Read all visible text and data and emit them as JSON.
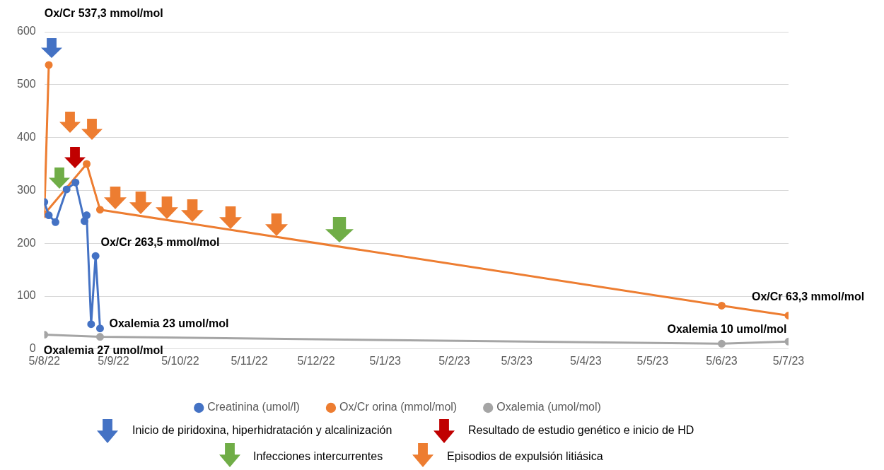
{
  "chart_data": {
    "type": "line",
    "x": [
      "2022-08-05",
      "2022-08-07",
      "2022-08-10",
      "2022-08-15",
      "2022-08-19",
      "2022-08-23",
      "2022-08-24",
      "2022-08-26",
      "2022-08-28",
      "2022-08-30"
    ],
    "series": [
      {
        "name": "Creatinina (umol/l)",
        "color": "#4472c4",
        "values": [
          278,
          253,
          240,
          302,
          315,
          242,
          253,
          47,
          176,
          39
        ]
      },
      {
        "name": "Ox/Cr orina (mmol/mol)",
        "color": "#ed7d31",
        "x": [
          "2022-08-07",
          "2022-08-05",
          "2022-08-24",
          "2022-08-30",
          "2023-06-05",
          "2023-07-05"
        ],
        "values": [
          537.3,
          255,
          350,
          263.5,
          82,
          63.3
        ]
      },
      {
        "name": "Oxalemia (umol/mol)",
        "color": "#a5a5a5",
        "x": [
          "2022-08-05",
          "2022-08-30",
          "2023-06-05",
          "2023-07-05"
        ],
        "values": [
          27,
          23,
          10,
          14
        ]
      }
    ],
    "xlim": [
      "2022-08-05",
      "2023-07-05"
    ],
    "xticks": [
      {
        "value": "2022-08-05",
        "label": "5/8/22"
      },
      {
        "value": "2022-09-05",
        "label": "5/9/22"
      },
      {
        "value": "2022-10-05",
        "label": "5/10/22"
      },
      {
        "value": "2022-11-05",
        "label": "5/11/22"
      },
      {
        "value": "2022-12-05",
        "label": "5/12/22"
      },
      {
        "value": "2023-01-05",
        "label": "5/1/23"
      },
      {
        "value": "2023-02-05",
        "label": "5/2/23"
      },
      {
        "value": "2023-03-05",
        "label": "5/3/23"
      },
      {
        "value": "2023-04-05",
        "label": "5/4/23"
      },
      {
        "value": "2023-05-05",
        "label": "5/5/23"
      },
      {
        "value": "2023-06-05",
        "label": "5/6/23"
      },
      {
        "value": "2023-07-05",
        "label": "5/7/23"
      }
    ],
    "ylim": [
      0,
      600
    ],
    "yticks": [
      0,
      100,
      200,
      300,
      400,
      500,
      600
    ],
    "grid": "y",
    "legend": "bottom",
    "marker": "circle",
    "line_style": "solid",
    "annotations": [
      "Ox/Cr 537,3 mmol/mol",
      {
        "text": "Ox/Cr 263,5 mmol/mol",
        "x": "2022-08-30",
        "y": 263.5
      },
      {
        "text": "Ox/Cr 63,3 mmol/mol",
        "x": "2023-07-05",
        "y": 63.3
      },
      {
        "text": "Oxalemia 23 umol/mol",
        "x": "2022-08-30",
        "y": 23
      },
      {
        "text": "Oxalemia 27 umol/mol",
        "x": "2022-08-05",
        "y": 27
      },
      {
        "text": "Oxalemia 10 umol/mol",
        "x": "2023-06-05",
        "y": 10
      },
      "Inicio de piridoxina, hiperhidratación y alcalinización",
      "Resultado de estudio genético e inicio de HD",
      "Infecciones intercurrentes",
      "Episodios de expulsión litiásica"
    ]
  }
}
